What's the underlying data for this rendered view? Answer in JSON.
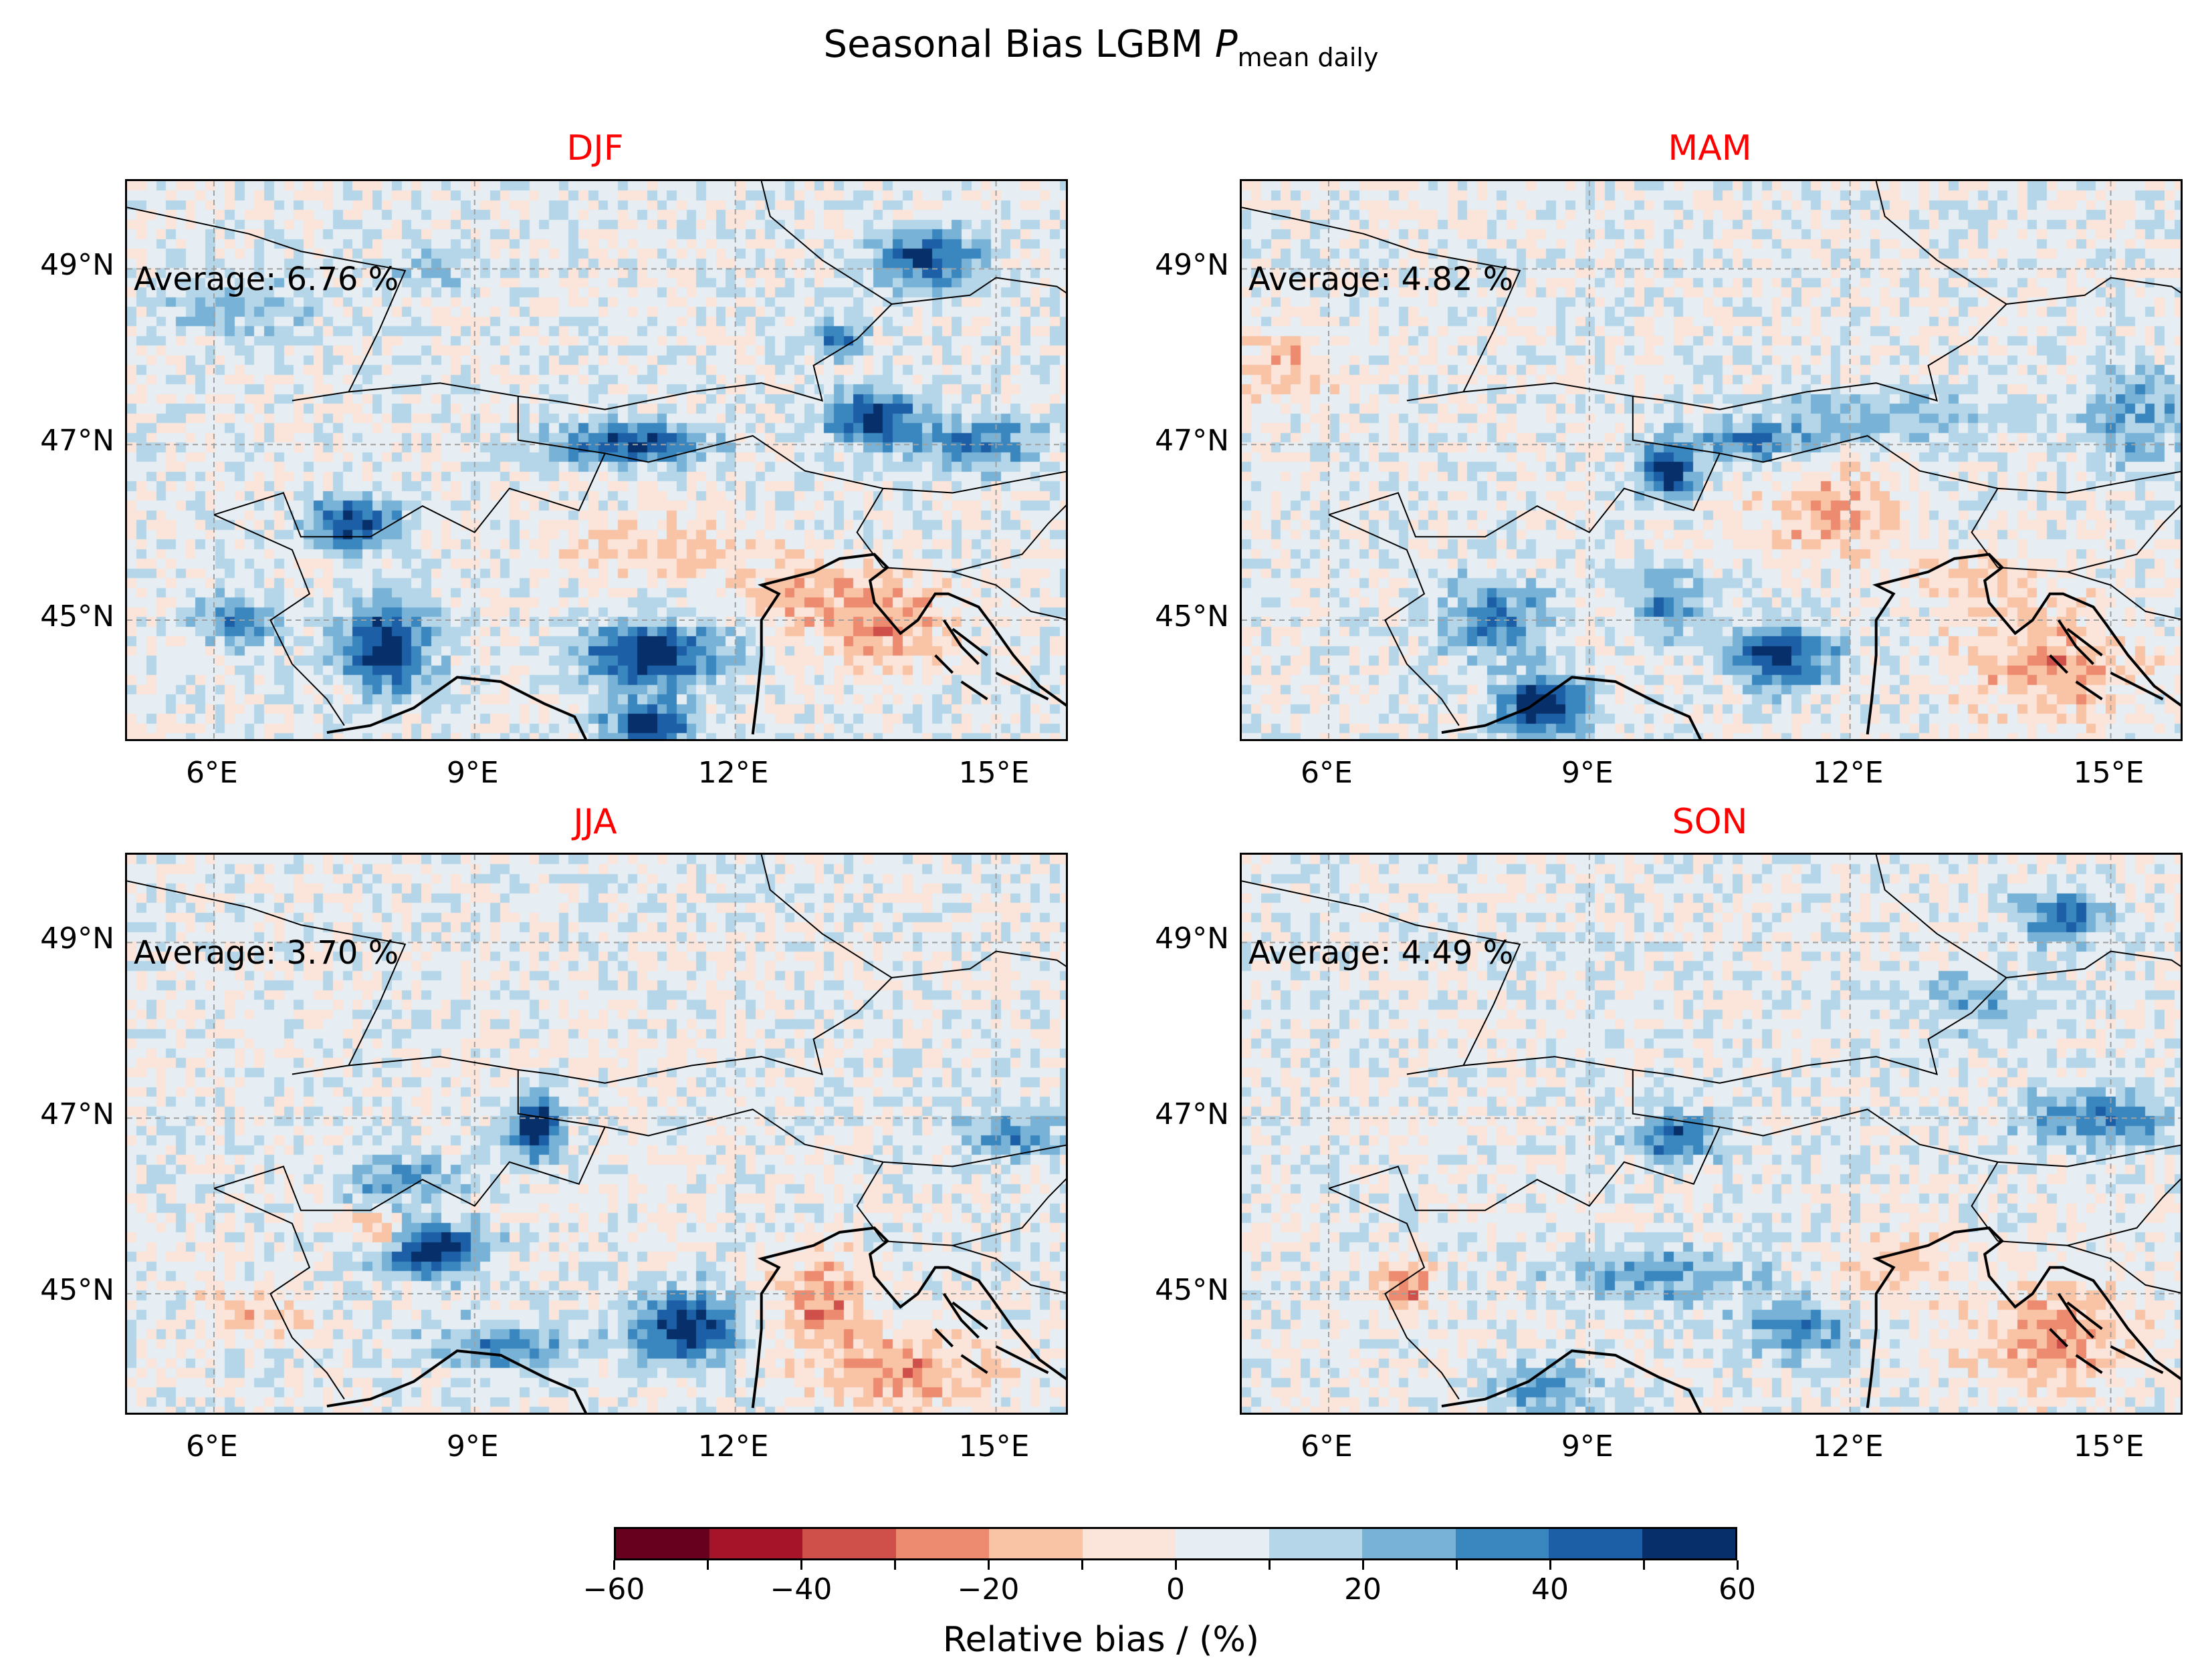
{
  "figure": {
    "title_prefix": "Seasonal Bias LGBM ",
    "title_symbol": "P",
    "title_subscript": "mean daily"
  },
  "panels": [
    {
      "title": "DJF",
      "average_label": "Average: 6.76 %"
    },
    {
      "title": "MAM",
      "average_label": "Average: 4.82 %"
    },
    {
      "title": "JJA",
      "average_label": "Average: 3.70 %"
    },
    {
      "title": "SON",
      "average_label": "Average: 4.49 %"
    }
  ],
  "axes": {
    "x_ticks": [
      "6°E",
      "9°E",
      "12°E",
      "15°E"
    ],
    "x_tick_values": [
      6,
      9,
      12,
      15
    ],
    "y_ticks": [
      "49°N",
      "47°N",
      "45°N"
    ],
    "y_tick_values": [
      49,
      47,
      45
    ],
    "lon_range": [
      5,
      15.85
    ],
    "lat_range": [
      43.6,
      50.0
    ],
    "grid": "dashed"
  },
  "colorbar": {
    "label": "Relative bias / (%)",
    "tick_labels": [
      "−60",
      "−40",
      "−20",
      "0",
      "20",
      "40",
      "60"
    ],
    "tick_values": [
      -60,
      -40,
      -20,
      0,
      20,
      40,
      60
    ],
    "bounds": [
      -60,
      60
    ],
    "step": 10,
    "colors": [
      "#67001f",
      "#a51429",
      "#cf4f4a",
      "#ec8b6f",
      "#f9c3a6",
      "#fbe5da",
      "#e6eef3",
      "#b5d6e9",
      "#78b2d6",
      "#3a87c0",
      "#1c5fa6",
      "#07306b"
    ]
  },
  "colors": {
    "panel_title": "#ff0000",
    "coastline": "#000000",
    "border": "#000000",
    "grid": "#a0a0a0"
  }
}
